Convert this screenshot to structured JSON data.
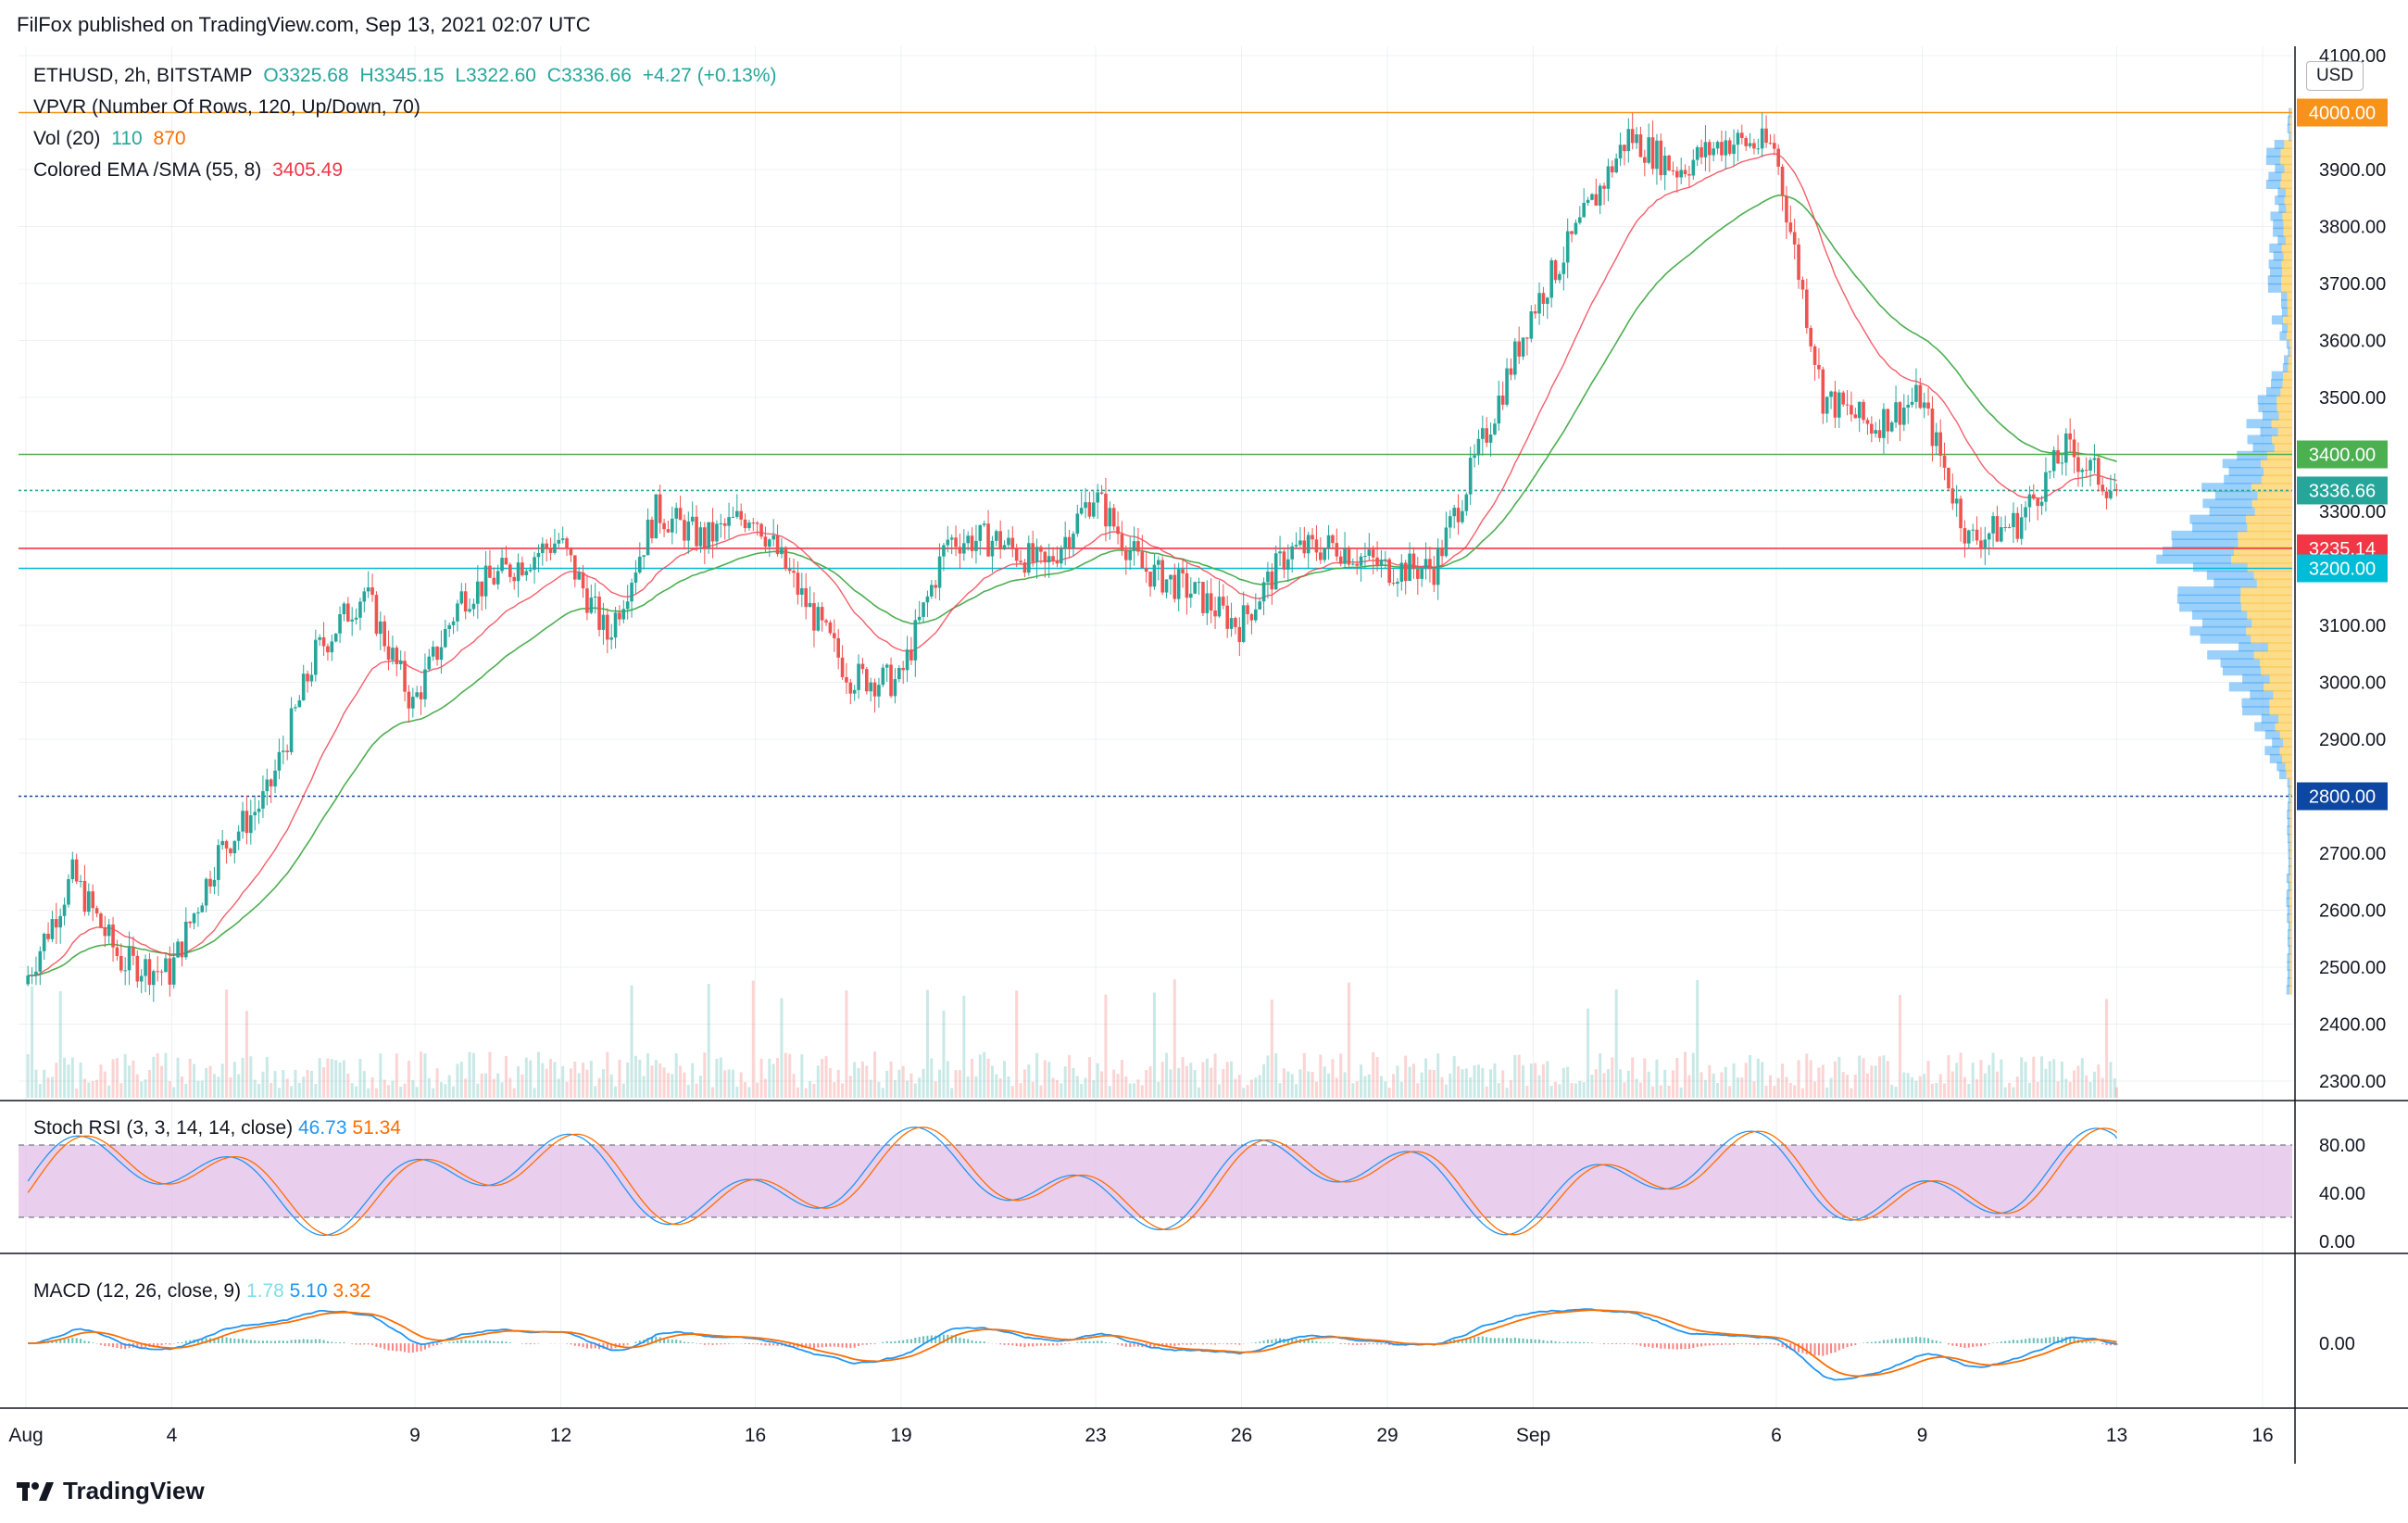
{
  "header": {
    "published_by": "FilFox published on TradingView.com, Sep 13, 2021 02:07 UTC"
  },
  "legend": {
    "symbol_line": "ETHUSD, 2h, BITSTAMP",
    "open": "O3325.68",
    "high": "H3345.15",
    "low": "L3322.60",
    "close": "C3336.66",
    "change": "+4.27 (+0.13%)",
    "vpvr": "VPVR (Number Of Rows, 120, Up/Down, 70)",
    "vol_label": "Vol (20)",
    "vol_value1": "110",
    "vol_value2": "870",
    "ema_label": "Colored EMA /SMA (55, 8)",
    "ema_value": "3405.49",
    "stoch_label": "Stoch RSI (3, 3, 14, 14, close)",
    "stoch_k": "46.73",
    "stoch_d": "51.34",
    "macd_label": "MACD (12, 26, close, 9)",
    "macd_hist": "1.78",
    "macd_line": "5.10",
    "macd_signal": "3.32"
  },
  "price_axis": {
    "currency": "USD",
    "ticks": [
      "4100.00",
      "4000.00",
      "3900.00",
      "3800.00",
      "3700.00",
      "3600.00",
      "3500.00",
      "3400.00",
      "3300.00",
      "3200.00",
      "3100.00",
      "3000.00",
      "2900.00",
      "2800.00",
      "2700.00",
      "2600.00",
      "2500.00",
      "2400.00",
      "2300.00"
    ]
  },
  "price_labels": [
    {
      "value": 4000.0,
      "text": "4000.00",
      "color": "#f7931a"
    },
    {
      "value": 3400.0,
      "text": "3400.00",
      "color": "#4caf50"
    },
    {
      "value": 3336.66,
      "text": "3336.66",
      "color": "#26a69a"
    },
    {
      "value": 3235.14,
      "text": "3235.14",
      "color": "#f23645"
    },
    {
      "value": 3200.0,
      "text": "3200.00",
      "color": "#00bcd4"
    },
    {
      "value": 2800.0,
      "text": "2800.00",
      "color": "#0d47a1"
    }
  ],
  "time_axis": [
    "Aug",
    "4",
    "9",
    "12",
    "16",
    "19",
    "23",
    "26",
    "29",
    "Sep",
    "6",
    "9",
    "13",
    "16"
  ],
  "stoch_axis": [
    "80.00",
    "40.00",
    "0.00"
  ],
  "macd_axis": [
    "0.00"
  ],
  "colors": {
    "up": "#26a69a",
    "down": "#ef5350",
    "ema": "#4caf50",
    "sma": "#f23645",
    "stoch_k": "#2196f3",
    "stoch_d": "#ff6d00",
    "stoch_band": "#e1bee7",
    "macd_line": "#2196f3",
    "macd_signal": "#ff6d00"
  },
  "footer": {
    "brand": "TradingView"
  },
  "chart_data": {
    "type": "candlestick",
    "symbol": "ETHUSD",
    "interval": "2h",
    "exchange": "BITSTAMP",
    "ylim": [
      2280,
      4110
    ],
    "horizontal_levels": [
      4000,
      3400,
      3235.14,
      3200,
      2800
    ],
    "last_price": 3336.66,
    "price_path": [
      {
        "date": "Aug 1",
        "price": 2470
      },
      {
        "date": "Aug 2",
        "price": 2660
      },
      {
        "date": "Aug 3",
        "price": 2510
      },
      {
        "date": "Aug 4",
        "price": 2490
      },
      {
        "date": "Aug 5",
        "price": 2700
      },
      {
        "date": "Aug 6",
        "price": 2800
      },
      {
        "date": "Aug 7",
        "price": 3050
      },
      {
        "date": "Aug 8",
        "price": 3160
      },
      {
        "date": "Aug 9",
        "price": 2960
      },
      {
        "date": "Aug 10",
        "price": 3150
      },
      {
        "date": "Aug 11",
        "price": 3200
      },
      {
        "date": "Aug 12",
        "price": 3250
      },
      {
        "date": "Aug 13",
        "price": 3080
      },
      {
        "date": "Aug 14",
        "price": 3300
      },
      {
        "date": "Aug 15",
        "price": 3250
      },
      {
        "date": "Aug 16",
        "price": 3300
      },
      {
        "date": "Aug 17",
        "price": 3150
      },
      {
        "date": "Aug 18",
        "price": 3010
      },
      {
        "date": "Aug 19",
        "price": 3000
      },
      {
        "date": "Aug 20",
        "price": 3250
      },
      {
        "date": "Aug 21",
        "price": 3250
      },
      {
        "date": "Aug 22",
        "price": 3200
      },
      {
        "date": "Aug 23",
        "price": 3330
      },
      {
        "date": "Aug 24",
        "price": 3200
      },
      {
        "date": "Aug 25",
        "price": 3160
      },
      {
        "date": "Aug 26",
        "price": 3100
      },
      {
        "date": "Aug 27",
        "price": 3230
      },
      {
        "date": "Aug 28",
        "price": 3240
      },
      {
        "date": "Aug 29",
        "price": 3200
      },
      {
        "date": "Aug 30",
        "price": 3200
      },
      {
        "date": "Aug 31",
        "price": 3420
      },
      {
        "date": "Sep 1",
        "price": 3650
      },
      {
        "date": "Sep 2",
        "price": 3800
      },
      {
        "date": "Sep 3",
        "price": 3960
      },
      {
        "date": "Sep 4",
        "price": 3900
      },
      {
        "date": "Sep 5",
        "price": 3950
      },
      {
        "date": "Sep 6",
        "price": 3940
      },
      {
        "date": "Sep 7",
        "price": 3500
      },
      {
        "date": "Sep 8",
        "price": 3450
      },
      {
        "date": "Sep 9",
        "price": 3500
      },
      {
        "date": "Sep 10",
        "price": 3250
      },
      {
        "date": "Sep 11",
        "price": 3280
      },
      {
        "date": "Sep 12",
        "price": 3410
      },
      {
        "date": "Sep 13",
        "price": 3336.66
      }
    ],
    "panes": [
      "price",
      "Stoch RSI",
      "MACD"
    ]
  }
}
